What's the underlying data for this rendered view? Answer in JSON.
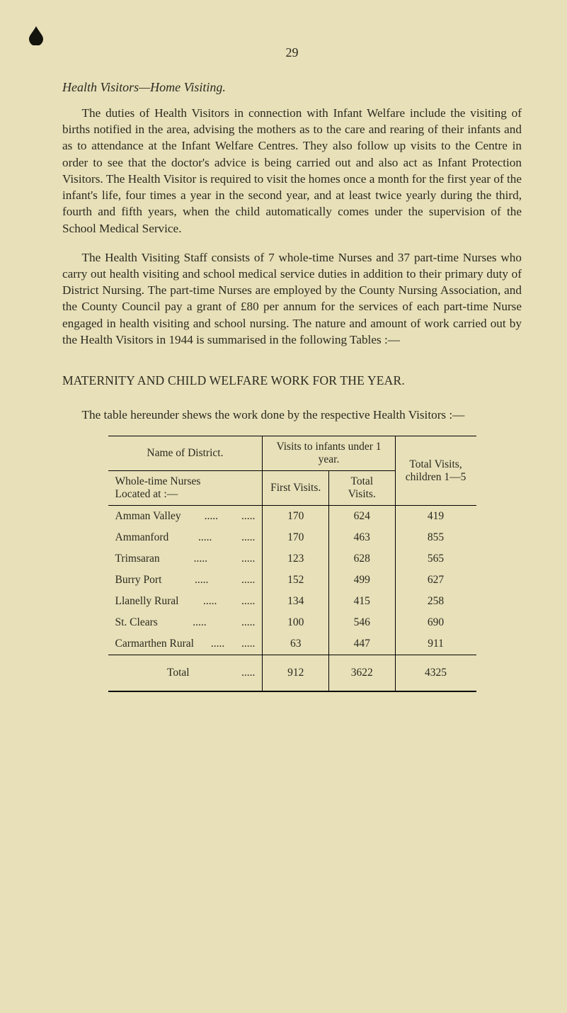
{
  "pageNumber": "29",
  "heading1": "Health Visitors—Home Visiting.",
  "para1": "The duties of Health Visitors in connection with Infant Welfare include the visiting of births notified in the area, advising the mothers as to the care and rearing of their infants and as to attendance at the Infant Welfare Centres. They also follow up visits to the Centre in order to see that the doctor's advice is being carried out and also act as Infant Protection Visitors. The Health Visitor is required to visit the homes once a month for the first year of the infant's life, four times a year in the second year, and at least twice yearly during the third, fourth and fifth years, when the child automatically comes under the supervision of the School Medical Service.",
  "para2": "The Health Visiting Staff consists of 7 whole-time Nurses and 37 part-time Nurses who carry out health visiting and school medical service duties in addition to their primary duty of District Nursing. The part-time Nurses are employed by the County Nursing Association, and the County Council pay a grant of £80 per annum for the services of each part-time Nurse engaged in health visiting and school nursing. The nature and amount of work carried out by the Health Visitors in 1944 is summarised in the following Tables :—",
  "section": "MATERNITY AND CHILD WELFARE WORK FOR THE YEAR.",
  "para3": "The table hereunder shews the work done by the respective Health Visitors :—",
  "table": {
    "hdrNameOfDistrict": "Name of District.",
    "hdrVisitsInfants": "Visits to infants under 1 year.",
    "hdrTotalVisitsChildren": "Total Visits, children 1—5",
    "hdrWholeTime": "Whole-time Nurses\nLocated at :—",
    "hdrFirstVisits": "First Visits.",
    "hdrTotalVisits": "Total Visits.",
    "rows": [
      {
        "name": "Amman Valley",
        "first": "170",
        "total": "624",
        "c15": "419"
      },
      {
        "name": "Ammanford",
        "first": "170",
        "total": "463",
        "c15": "855"
      },
      {
        "name": "Trimsaran",
        "first": "123",
        "total": "628",
        "c15": "565"
      },
      {
        "name": "Burry Port",
        "first": "152",
        "total": "499",
        "c15": "627"
      },
      {
        "name": "Llanelly Rural",
        "first": "134",
        "total": "415",
        "c15": "258"
      },
      {
        "name": "St. Clears",
        "first": "100",
        "total": "546",
        "c15": "690"
      },
      {
        "name": "Carmarthen Rural",
        "first": "63",
        "total": "447",
        "c15": "911"
      }
    ],
    "totalLabel": "Total",
    "totals": {
      "first": "912",
      "total": "3622",
      "c15": "4325"
    }
  }
}
